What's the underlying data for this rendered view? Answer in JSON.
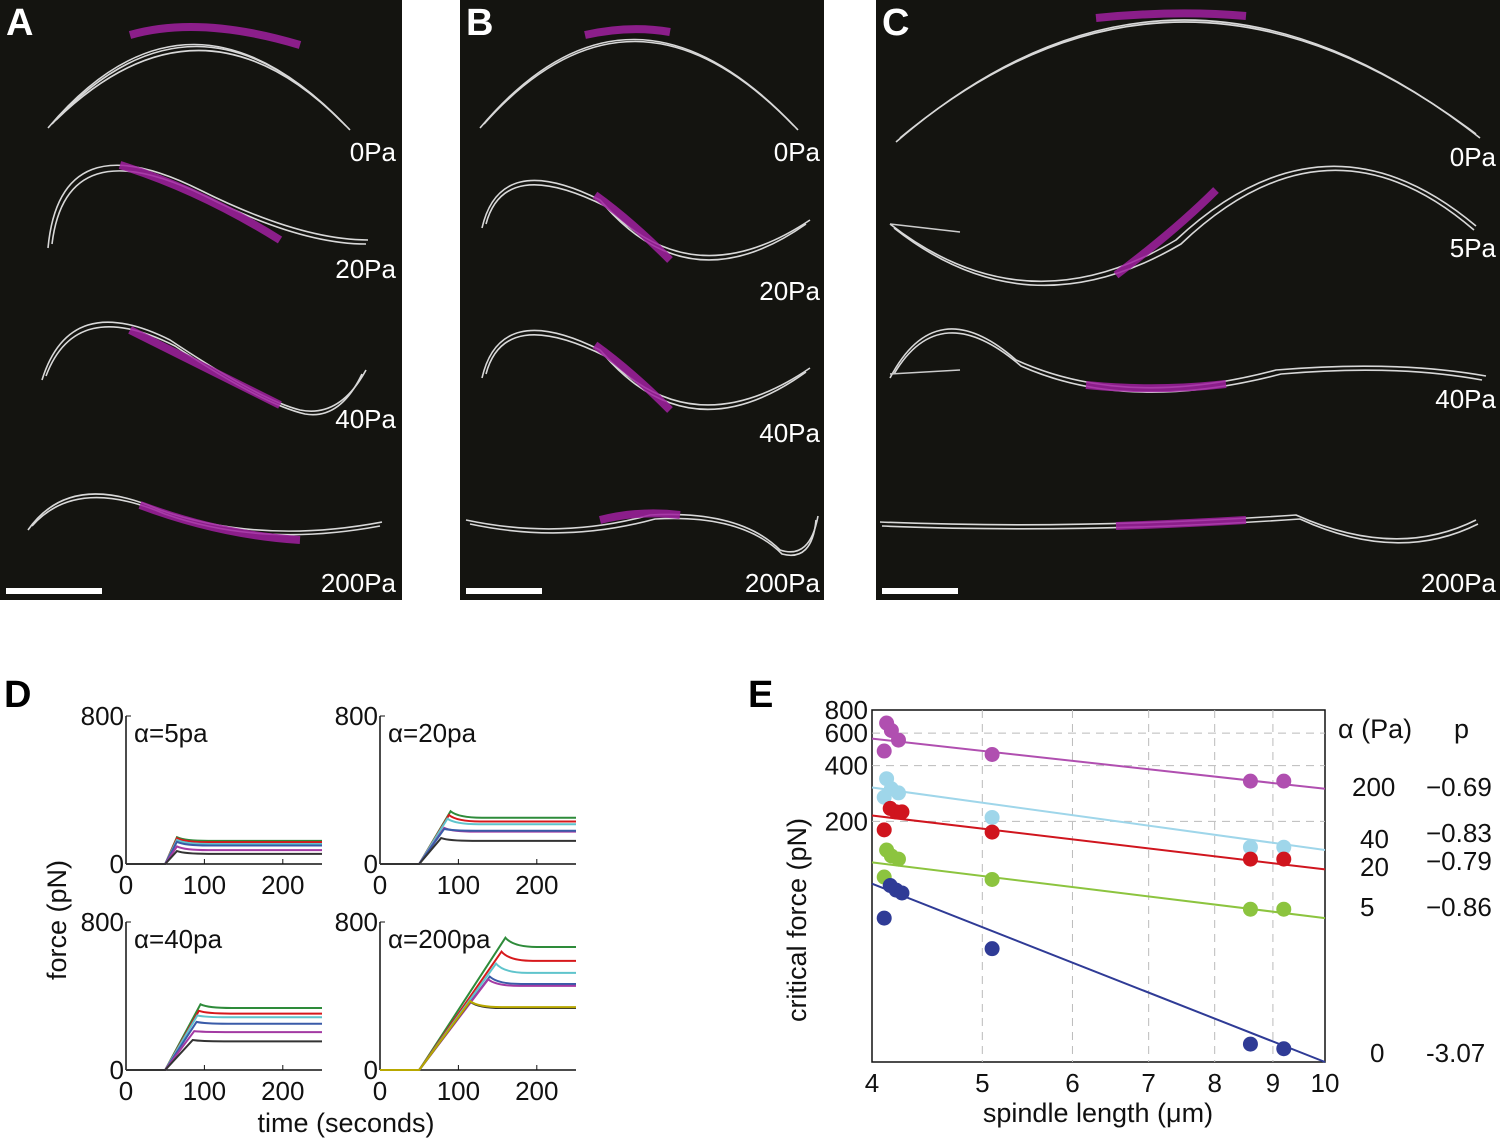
{
  "panels_top": [
    {
      "label": "A",
      "pressures": [
        "0Pa",
        "20Pa",
        "40Pa",
        "200Pa"
      ]
    },
    {
      "label": "B",
      "pressures": [
        "0Pa",
        "20Pa",
        "40Pa",
        "200Pa"
      ]
    },
    {
      "label": "C",
      "pressures": [
        "0Pa",
        "5Pa",
        "40Pa",
        "200Pa"
      ]
    }
  ],
  "panel_d": {
    "label": "D",
    "ylabel": "force (pN)",
    "xlabel": "time (seconds)"
  },
  "panel_e": {
    "label": "E",
    "legend_header_alpha": "α (Pa)",
    "legend_header_p": "p"
  },
  "colors": {
    "green": "#2e8b3a",
    "red": "#d7191c",
    "cyan": "#5fc4cc",
    "blue": "#3a5ba8",
    "magenta": "#a33aa3",
    "black": "#333333",
    "e_magenta": "#b04fb0",
    "e_cyan": "#9fd6ea",
    "e_red": "#d0151e",
    "e_green": "#8cc43f",
    "e_blue": "#2f3b96"
  },
  "chart_data": [
    {
      "type": "line",
      "title": "α=5pa",
      "xlabel": "",
      "ylabel": "",
      "xlim": [
        0,
        250
      ],
      "ylim": [
        0,
        800
      ],
      "xticks": [
        0,
        100,
        200
      ],
      "yticks": [
        0,
        800
      ],
      "series": [
        {
          "name": "green",
          "plateau": 125,
          "peak": 145,
          "peak_t": 65
        },
        {
          "name": "red",
          "plateau": 118,
          "peak": 140,
          "peak_t": 65
        },
        {
          "name": "cyan",
          "plateau": 108,
          "peak": 130,
          "peak_t": 65
        },
        {
          "name": "blue",
          "plateau": 100,
          "peak": 120,
          "peak_t": 65
        },
        {
          "name": "magenta",
          "plateau": 75,
          "peak": 95,
          "peak_t": 65
        },
        {
          "name": "black",
          "plateau": 55,
          "peak": 70,
          "peak_t": 65
        }
      ]
    },
    {
      "type": "line",
      "title": "α=20pa",
      "xlabel": "",
      "ylabel": "",
      "xlim": [
        0,
        250
      ],
      "ylim": [
        0,
        800
      ],
      "xticks": [
        0,
        100,
        200
      ],
      "yticks": [
        0,
        800
      ],
      "series": [
        {
          "name": "green",
          "plateau": 250,
          "peak": 285,
          "peak_t": 90
        },
        {
          "name": "red",
          "plateau": 230,
          "peak": 265,
          "peak_t": 88
        },
        {
          "name": "cyan",
          "plateau": 215,
          "peak": 245,
          "peak_t": 86
        },
        {
          "name": "magenta",
          "plateau": 175,
          "peak": 195,
          "peak_t": 82
        },
        {
          "name": "blue",
          "plateau": 180,
          "peak": 190,
          "peak_t": 82
        },
        {
          "name": "black",
          "plateau": 125,
          "peak": 140,
          "peak_t": 78
        }
      ]
    },
    {
      "type": "line",
      "title": "α=40pa",
      "xlabel": "",
      "ylabel": "",
      "xlim": [
        0,
        250
      ],
      "ylim": [
        0,
        800
      ],
      "xticks": [
        0,
        100,
        200
      ],
      "yticks": [
        0,
        800
      ],
      "series": [
        {
          "name": "green",
          "plateau": 335,
          "peak": 355,
          "peak_t": 95
        },
        {
          "name": "red",
          "plateau": 305,
          "peak": 320,
          "peak_t": 93
        },
        {
          "name": "cyan",
          "plateau": 285,
          "peak": 295,
          "peak_t": 91
        },
        {
          "name": "blue",
          "plateau": 250,
          "peak": 260,
          "peak_t": 90
        },
        {
          "name": "magenta",
          "plateau": 205,
          "peak": 210,
          "peak_t": 87
        },
        {
          "name": "black",
          "plateau": 155,
          "peak": 162,
          "peak_t": 85
        }
      ]
    },
    {
      "type": "line",
      "title": "α=200pa",
      "xlabel": "",
      "ylabel": "",
      "xlim": [
        0,
        250
      ],
      "ylim": [
        0,
        800
      ],
      "xticks": [
        0,
        100,
        200
      ],
      "yticks": [
        0,
        800
      ],
      "series": [
        {
          "name": "green",
          "plateau": 665,
          "peak": 715,
          "peak_t": 160
        },
        {
          "name": "red",
          "plateau": 590,
          "peak": 640,
          "peak_t": 155
        },
        {
          "name": "cyan",
          "plateau": 525,
          "peak": 575,
          "peak_t": 148
        },
        {
          "name": "blue",
          "plateau": 465,
          "peak": 505,
          "peak_t": 140
        },
        {
          "name": "magenta",
          "plateau": 455,
          "peak": 490,
          "peak_t": 138
        },
        {
          "name": "black",
          "plateau": 335,
          "peak": 370,
          "peak_t": 115
        },
        {
          "name": "yellow",
          "plateau": 340,
          "peak": 372,
          "peak_t": 115
        }
      ]
    },
    {
      "type": "scatter",
      "title": "",
      "xlabel": "spindle length (μm)",
      "ylabel": "critical force (pN)",
      "xscale": "log",
      "yscale": "log",
      "xlim": [
        4,
        10
      ],
      "ylim": [
        10,
        800
      ],
      "xticks": [
        4,
        5,
        6,
        7,
        8,
        9,
        10
      ],
      "yticks": [
        200,
        400,
        600,
        800
      ],
      "hlines": [
        200,
        400,
        600
      ],
      "series": [
        {
          "name": "200",
          "alpha_label": "200",
          "p_label": "−0.69",
          "color": "magenta",
          "x": [
            4.1,
            4.12,
            4.16,
            4.22,
            5.1,
            8.6,
            9.2
          ],
          "y": [
            480,
            680,
            620,
            550,
            460,
            330,
            330
          ],
          "fit": [
            560,
            300
          ]
        },
        {
          "name": "40",
          "alpha_label": "40",
          "p_label": "−0.83",
          "color": "cyan",
          "x": [
            4.1,
            4.12,
            4.16,
            4.22,
            5.1,
            8.6,
            9.2
          ],
          "y": [
            270,
            340,
            300,
            285,
            210,
            145,
            145
          ],
          "fit": [
            305,
            140
          ]
        },
        {
          "name": "20",
          "alpha_label": "20",
          "p_label": "−0.79",
          "color": "red",
          "x": [
            4.1,
            4.15,
            4.2,
            4.25,
            5.1,
            8.6,
            9.2
          ],
          "y": [
            180,
            235,
            225,
            225,
            175,
            125,
            125
          ],
          "fit": [
            215,
            110
          ]
        },
        {
          "name": "5",
          "alpha_label": "5",
          "p_label": "−0.86",
          "color": "green",
          "x": [
            4.1,
            4.12,
            4.16,
            4.22,
            5.1,
            8.6,
            9.2
          ],
          "y": [
            100,
            140,
            130,
            125,
            97,
            67,
            67
          ],
          "fit": [
            120,
            60
          ]
        },
        {
          "name": "0",
          "alpha_label": "0",
          "p_label": "-3.07",
          "color": "blue",
          "x": [
            4.1,
            4.15,
            4.2,
            4.25,
            5.1,
            8.6,
            9.2
          ],
          "y": [
            60,
            90,
            85,
            82,
            41,
            12.5,
            11.8
          ],
          "fit": [
            92,
            10
          ]
        }
      ]
    }
  ]
}
